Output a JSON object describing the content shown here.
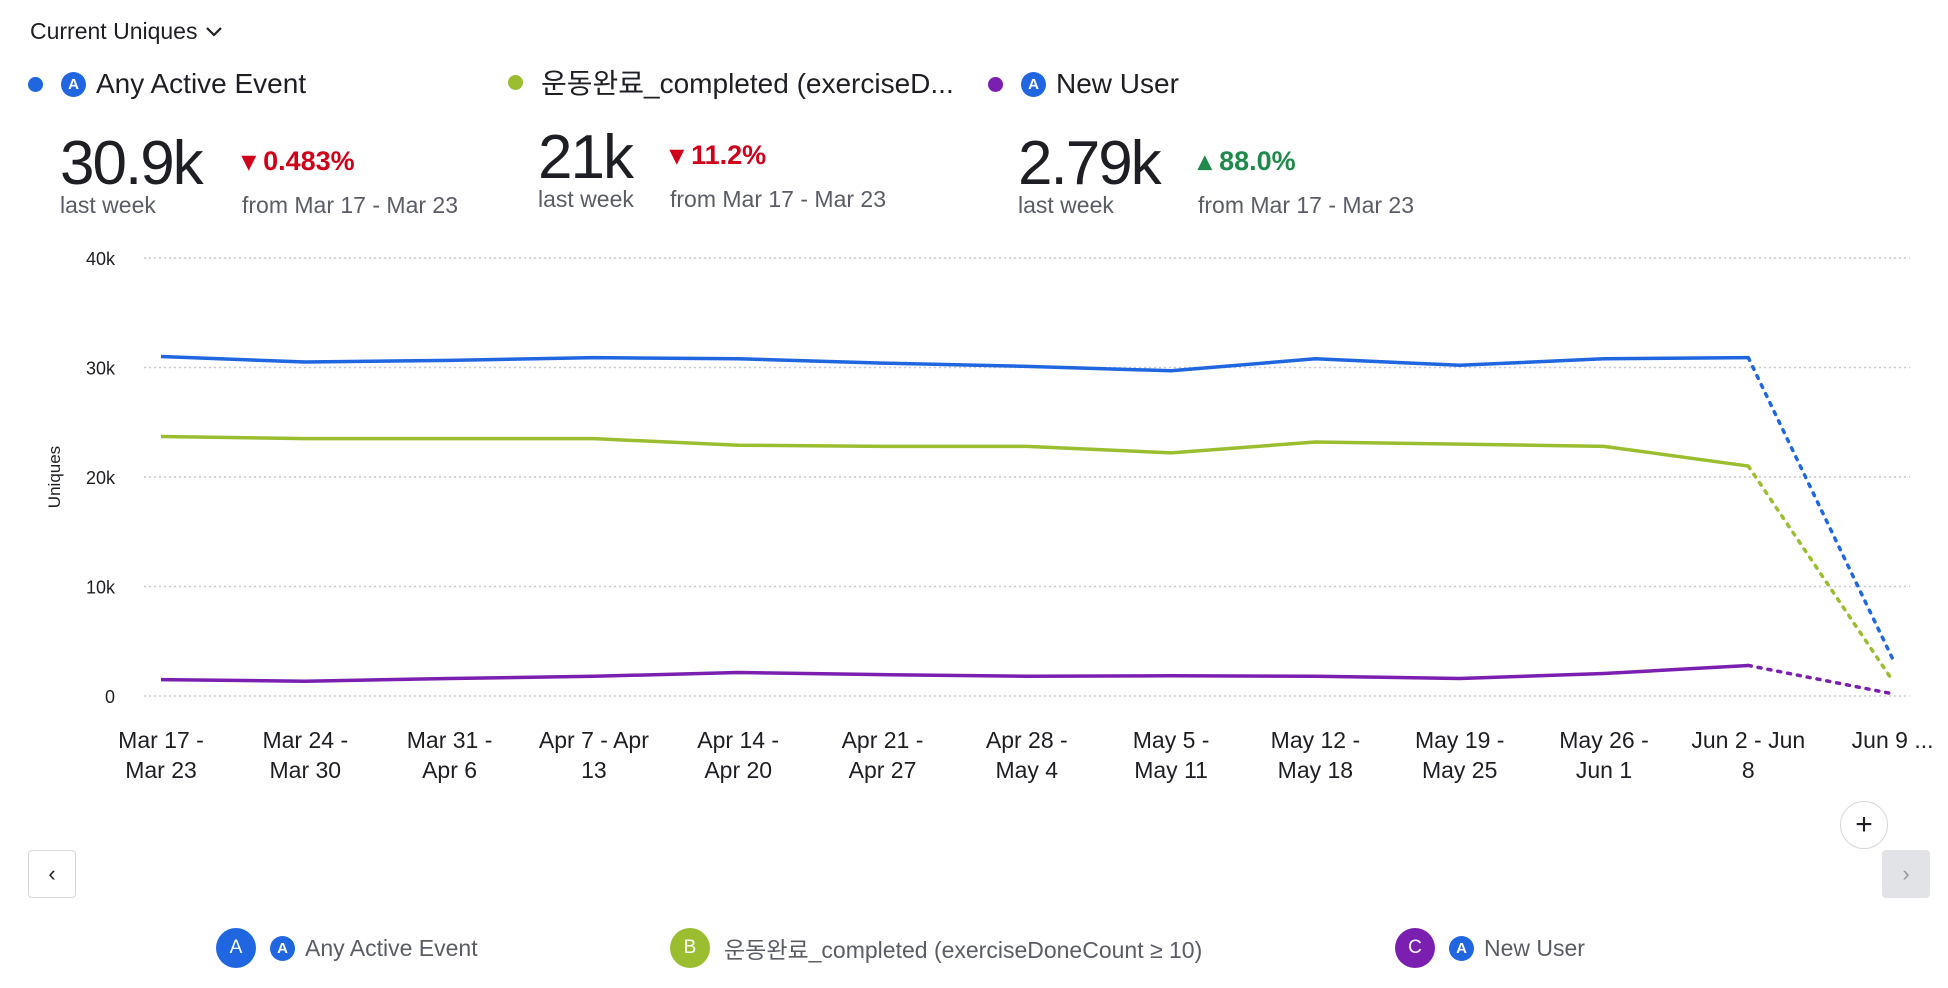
{
  "header": {
    "metric_label": "Current Uniques"
  },
  "colors": {
    "a": "#1f66e0",
    "b": "#9bbd30",
    "c": "#7a1fb0",
    "red": "#d0021b",
    "green": "#1f8a4c"
  },
  "cards": [
    {
      "name": "Any Active Event",
      "value": "30.9k",
      "period": "last week",
      "change": "0.483%",
      "direction": "down",
      "from": "from Mar 17 - Mar 23"
    },
    {
      "name": "운동완료_completed (exerciseD...",
      "value": "21k",
      "period": "last week",
      "change": "11.2%",
      "direction": "down",
      "from": "from Mar 17 - Mar 23"
    },
    {
      "name": "New User",
      "value": "2.79k",
      "period": "last week",
      "change": "88.0%",
      "direction": "up",
      "from": "from Mar 17 - Mar 23"
    }
  ],
  "legend": [
    {
      "badge": "A",
      "label": "Any Active Event"
    },
    {
      "badge": "B",
      "label": "운동완료_completed (exerciseDoneCount ≥ 10)"
    },
    {
      "badge": "C",
      "label": "New User"
    }
  ],
  "chart_data": {
    "type": "line",
    "ylabel": "Uniques",
    "ylim": [
      0,
      40000
    ],
    "yticks": [
      "0",
      "10k",
      "20k",
      "30k",
      "40k"
    ],
    "categories": [
      [
        "Mar 17 -",
        "Mar 23"
      ],
      [
        "Mar 24 -",
        "Mar 30"
      ],
      [
        "Mar 31 -",
        "Apr 6"
      ],
      [
        "Apr 7 - Apr",
        "13"
      ],
      [
        "Apr 14 -",
        "Apr 20"
      ],
      [
        "Apr 21 -",
        "Apr 27"
      ],
      [
        "Apr 28 -",
        "May 4"
      ],
      [
        "May 5 -",
        "May 11"
      ],
      [
        "May 12 -",
        "May 18"
      ],
      [
        "May 19 -",
        "May 25"
      ],
      [
        "May 26 -",
        "Jun 1"
      ],
      [
        "Jun 2 - Jun",
        "8"
      ],
      [
        "Jun 9 ...",
        ""
      ]
    ],
    "incomplete_last_point": true,
    "grid": true,
    "series": [
      {
        "name": "Any Active Event",
        "color": "#1f66e0",
        "values": [
          31000,
          30500,
          30650,
          30900,
          30800,
          30400,
          30100,
          29700,
          30800,
          30200,
          30800,
          30900,
          3400
        ]
      },
      {
        "name": "운동완료_completed (exerciseDoneCount ≥ 10)",
        "color": "#9bbd30",
        "values": [
          23700,
          23500,
          23500,
          23500,
          22900,
          22800,
          22800,
          22200,
          23200,
          23000,
          22800,
          21000,
          1400
        ]
      },
      {
        "name": "New User",
        "color": "#7a1fb0",
        "values": [
          1500,
          1350,
          1600,
          1800,
          2150,
          1950,
          1800,
          1850,
          1800,
          1600,
          2050,
          2790,
          200
        ]
      }
    ]
  }
}
